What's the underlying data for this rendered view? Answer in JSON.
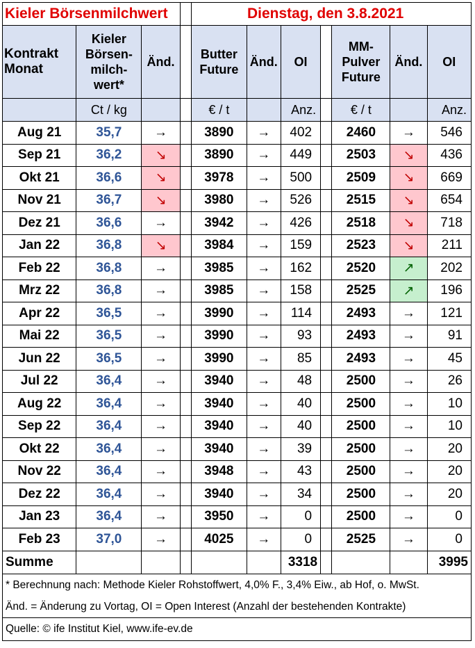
{
  "title": "Kieler Börsenmilchwert",
  "date": "Dienstag, den 3.8.2021",
  "headers": {
    "month": [
      "Kontrakt",
      "Monat"
    ],
    "kbm": [
      "Kieler",
      "Börsen-",
      "milch-",
      "wert*"
    ],
    "change": "Änd.",
    "butter": [
      "Butter",
      "Future"
    ],
    "oi": "OI",
    "mm": [
      "MM-",
      "Pulver",
      "Future"
    ]
  },
  "units": {
    "kbm": "Ct / kg",
    "butter_price": "€ / t",
    "butter_oi": "Anz.",
    "mm_price": "€ / t",
    "mm_oi": "Anz."
  },
  "rows": [
    {
      "month": "Aug 21",
      "kbm": "35,7",
      "kbm_chg": "→",
      "kbm_dir": "flat",
      "butter": "3890",
      "butter_chg": "→",
      "butter_dir": "flat",
      "butter_oi": "402",
      "mm": "2460",
      "mm_chg": "→",
      "mm_dir": "flat",
      "mm_oi": "546"
    },
    {
      "month": "Sep 21",
      "kbm": "36,2",
      "kbm_chg": "↘",
      "kbm_dir": "down",
      "butter": "3890",
      "butter_chg": "→",
      "butter_dir": "flat",
      "butter_oi": "449",
      "mm": "2503",
      "mm_chg": "↘",
      "mm_dir": "down",
      "mm_oi": "436"
    },
    {
      "month": "Okt 21",
      "kbm": "36,6",
      "kbm_chg": "↘",
      "kbm_dir": "down",
      "butter": "3978",
      "butter_chg": "→",
      "butter_dir": "flat",
      "butter_oi": "500",
      "mm": "2509",
      "mm_chg": "↘",
      "mm_dir": "down",
      "mm_oi": "669"
    },
    {
      "month": "Nov 21",
      "kbm": "36,7",
      "kbm_chg": "↘",
      "kbm_dir": "down",
      "butter": "3980",
      "butter_chg": "→",
      "butter_dir": "flat",
      "butter_oi": "526",
      "mm": "2515",
      "mm_chg": "↘",
      "mm_dir": "down",
      "mm_oi": "654"
    },
    {
      "month": "Dez 21",
      "kbm": "36,6",
      "kbm_chg": "→",
      "kbm_dir": "flat",
      "butter": "3942",
      "butter_chg": "→",
      "butter_dir": "flat",
      "butter_oi": "426",
      "mm": "2518",
      "mm_chg": "↘",
      "mm_dir": "down",
      "mm_oi": "718"
    },
    {
      "month": "Jan 22",
      "kbm": "36,8",
      "kbm_chg": "↘",
      "kbm_dir": "down",
      "butter": "3984",
      "butter_chg": "→",
      "butter_dir": "flat",
      "butter_oi": "159",
      "mm": "2523",
      "mm_chg": "↘",
      "mm_dir": "down",
      "mm_oi": "211"
    },
    {
      "month": "Feb 22",
      "kbm": "36,8",
      "kbm_chg": "→",
      "kbm_dir": "flat",
      "butter": "3985",
      "butter_chg": "→",
      "butter_dir": "flat",
      "butter_oi": "162",
      "mm": "2520",
      "mm_chg": "↗",
      "mm_dir": "up",
      "mm_oi": "202"
    },
    {
      "month": "Mrz 22",
      "kbm": "36,8",
      "kbm_chg": "→",
      "kbm_dir": "flat",
      "butter": "3985",
      "butter_chg": "→",
      "butter_dir": "flat",
      "butter_oi": "158",
      "mm": "2525",
      "mm_chg": "↗",
      "mm_dir": "up",
      "mm_oi": "196"
    },
    {
      "month": "Apr 22",
      "kbm": "36,5",
      "kbm_chg": "→",
      "kbm_dir": "flat",
      "butter": "3990",
      "butter_chg": "→",
      "butter_dir": "flat",
      "butter_oi": "114",
      "mm": "2493",
      "mm_chg": "→",
      "mm_dir": "flat",
      "mm_oi": "121"
    },
    {
      "month": "Mai 22",
      "kbm": "36,5",
      "kbm_chg": "→",
      "kbm_dir": "flat",
      "butter": "3990",
      "butter_chg": "→",
      "butter_dir": "flat",
      "butter_oi": "93",
      "mm": "2493",
      "mm_chg": "→",
      "mm_dir": "flat",
      "mm_oi": "91"
    },
    {
      "month": "Jun 22",
      "kbm": "36,5",
      "kbm_chg": "→",
      "kbm_dir": "flat",
      "butter": "3990",
      "butter_chg": "→",
      "butter_dir": "flat",
      "butter_oi": "85",
      "mm": "2493",
      "mm_chg": "→",
      "mm_dir": "flat",
      "mm_oi": "45"
    },
    {
      "month": "Jul 22",
      "kbm": "36,4",
      "kbm_chg": "→",
      "kbm_dir": "flat",
      "butter": "3940",
      "butter_chg": "→",
      "butter_dir": "flat",
      "butter_oi": "48",
      "mm": "2500",
      "mm_chg": "→",
      "mm_dir": "flat",
      "mm_oi": "26"
    },
    {
      "month": "Aug 22",
      "kbm": "36,4",
      "kbm_chg": "→",
      "kbm_dir": "flat",
      "butter": "3940",
      "butter_chg": "→",
      "butter_dir": "flat",
      "butter_oi": "40",
      "mm": "2500",
      "mm_chg": "→",
      "mm_dir": "flat",
      "mm_oi": "10"
    },
    {
      "month": "Sep 22",
      "kbm": "36,4",
      "kbm_chg": "→",
      "kbm_dir": "flat",
      "butter": "3940",
      "butter_chg": "→",
      "butter_dir": "flat",
      "butter_oi": "40",
      "mm": "2500",
      "mm_chg": "→",
      "mm_dir": "flat",
      "mm_oi": "10"
    },
    {
      "month": "Okt 22",
      "kbm": "36,4",
      "kbm_chg": "→",
      "kbm_dir": "flat",
      "butter": "3940",
      "butter_chg": "→",
      "butter_dir": "flat",
      "butter_oi": "39",
      "mm": "2500",
      "mm_chg": "→",
      "mm_dir": "flat",
      "mm_oi": "20"
    },
    {
      "month": "Nov 22",
      "kbm": "36,4",
      "kbm_chg": "→",
      "kbm_dir": "flat",
      "butter": "3948",
      "butter_chg": "→",
      "butter_dir": "flat",
      "butter_oi": "43",
      "mm": "2500",
      "mm_chg": "→",
      "mm_dir": "flat",
      "mm_oi": "20"
    },
    {
      "month": "Dez 22",
      "kbm": "36,4",
      "kbm_chg": "→",
      "kbm_dir": "flat",
      "butter": "3940",
      "butter_chg": "→",
      "butter_dir": "flat",
      "butter_oi": "34",
      "mm": "2500",
      "mm_chg": "→",
      "mm_dir": "flat",
      "mm_oi": "20"
    },
    {
      "month": "Jan 23",
      "kbm": "36,4",
      "kbm_chg": "→",
      "kbm_dir": "flat",
      "butter": "3950",
      "butter_chg": "→",
      "butter_dir": "flat",
      "butter_oi": "0",
      "mm": "2500",
      "mm_chg": "→",
      "mm_dir": "flat",
      "mm_oi": "0"
    },
    {
      "month": "Feb 23",
      "kbm": "37,0",
      "kbm_chg": "→",
      "kbm_dir": "flat",
      "butter": "4025",
      "butter_chg": "→",
      "butter_dir": "flat",
      "butter_oi": "0",
      "mm": "2525",
      "mm_chg": "→",
      "mm_dir": "flat",
      "mm_oi": "0"
    }
  ],
  "summary": {
    "label": "Summe",
    "butter_oi_total": "3318",
    "mm_oi_total": "3995"
  },
  "footer": {
    "note1": "* Berechnung nach: Methode Kieler Rohstoffwert, 4,0% F., 3,4% Eiw., ab Hof, o. MwSt.",
    "note2": "Änd. = Änderung zu Vortag, OI = Open Interest (Anzahl der bestehenden Kontrakte)",
    "source": "Quelle: © ife Institut Kiel, www.ife-ev.de"
  },
  "colors": {
    "title": "#e00000",
    "header_bg": "#d9e1f2",
    "kbm_value": "#2f5597",
    "down_bg": "#ffc7ce",
    "down_fg": "#c00000",
    "up_bg": "#c6efce",
    "up_fg": "#006100"
  }
}
